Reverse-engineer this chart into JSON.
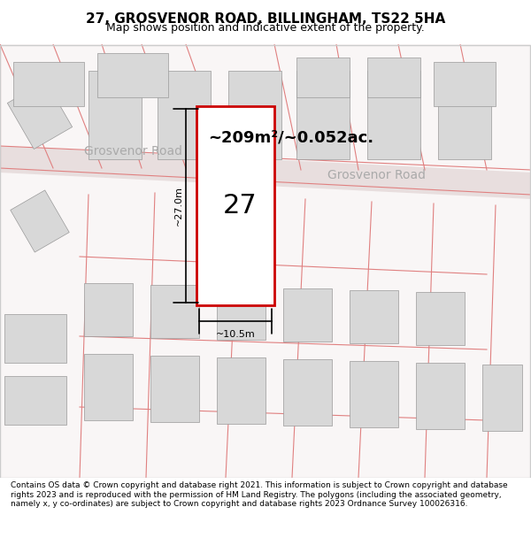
{
  "title": "27, GROSVENOR ROAD, BILLINGHAM, TS22 5HA",
  "subtitle": "Map shows position and indicative extent of the property.",
  "area_text": "~209m²/~0.052ac.",
  "property_number": "27",
  "dim_width": "~10.5m",
  "dim_height": "~27.0m",
  "road_label_left": "Grosvenor Road",
  "road_label_right": "Grosvenor Road",
  "footer": "Contains OS data © Crown copyright and database right 2021. This information is subject to Crown copyright and database rights 2023 and is reproduced with the permission of HM Land Registry. The polygons (including the associated geometry, namely x, y co-ordinates) are subject to Crown copyright and database rights 2023 Ordnance Survey 100026316.",
  "bg_color": "#f5f0f0",
  "map_bg": "#f9f6f6",
  "border_color": "#cccccc",
  "road_stripe_color": "#e8dede",
  "plot_outline_color": "#cc0000",
  "plot_fill_color": "#ffffff",
  "building_fill": "#d8d8d8",
  "building_edge": "#999999",
  "pink_line_color": "#e08080",
  "title_fontsize": 11,
  "subtitle_fontsize": 9,
  "area_fontsize": 14,
  "footer_fontsize": 6.5
}
